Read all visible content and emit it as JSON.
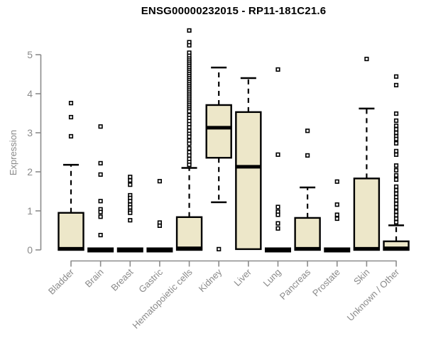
{
  "page": {
    "background": "#ffffff"
  },
  "chart_data": {
    "type": "boxplot",
    "title": "ENSG00000232015 - RP11-181C21.6",
    "ylabel": "Expression",
    "xlabel": "",
    "ylim": [
      0,
      5
    ],
    "yticks": [
      0,
      1,
      2,
      3,
      4,
      5
    ],
    "grid": false,
    "legend": "none",
    "colors": {
      "box_fill": "#EDE7C9",
      "box_stroke": "#000000",
      "median": "#000000",
      "axis": "#8c8c8c",
      "tick_text": "#8a8a8a",
      "title_text": "#000000",
      "outlier_fill": "#ffffff"
    },
    "categories": [
      "Bladder",
      "Brain",
      "Breast",
      "Gastric",
      "Hematopoietic cells",
      "Kidney",
      "Liver",
      "Lung",
      "Pancreas",
      "Prostate",
      "Skin",
      "Unknown / Other"
    ],
    "boxes": [
      {
        "label": "Bladder",
        "q1": 0,
        "median": 0.03,
        "q3": 0.95,
        "whisker_low": 0,
        "whisker_high": 2.18,
        "outliers": [
          3.76,
          3.4,
          2.91
        ]
      },
      {
        "label": "Brain",
        "q1": 0,
        "median": 0,
        "q3": 0,
        "whisker_low": 0,
        "whisker_high": 0,
        "outliers": [
          3.16,
          2.22,
          1.93,
          1.25,
          1.04,
          0.97,
          0.85,
          0.38
        ]
      },
      {
        "label": "Breast",
        "q1": 0,
        "median": 0,
        "q3": 0,
        "whisker_low": 0,
        "whisker_high": 0,
        "outliers": [
          1.87,
          1.78,
          1.67,
          1.4,
          1.33,
          1.25,
          1.16,
          1.09,
          1.0,
          0.95,
          0.76
        ]
      },
      {
        "label": "Gastric",
        "q1": 0,
        "median": 0,
        "q3": 0,
        "whisker_low": 0,
        "whisker_high": 0,
        "outliers": [
          1.76,
          0.7,
          0.62
        ]
      },
      {
        "label": "Hematopoietic cells",
        "q1": 0,
        "median": 0.04,
        "q3": 0.84,
        "whisker_low": 0,
        "whisker_high": 2.1,
        "outliers": [
          5.62,
          5.32,
          5.24,
          5.05,
          4.97,
          4.9,
          4.85,
          4.8,
          4.75,
          4.7,
          4.65,
          4.6,
          4.55,
          4.5,
          4.45,
          4.4,
          4.35,
          4.3,
          4.25,
          4.2,
          4.15,
          4.1,
          4.05,
          4.0,
          3.95,
          3.9,
          3.85,
          3.8,
          3.75,
          3.7,
          3.65,
          3.6,
          3.55,
          3.45,
          3.38,
          3.3,
          3.22,
          3.14,
          3.05,
          2.97,
          2.9,
          2.8,
          2.72,
          2.6,
          2.5,
          2.42,
          2.33,
          2.25,
          2.18
        ]
      },
      {
        "label": "Kidney",
        "q1": 2.36,
        "median": 3.13,
        "q3": 3.71,
        "whisker_low": 1.22,
        "whisker_high": 4.67,
        "outliers": [
          0.02
        ]
      },
      {
        "label": "Liver",
        "q1": 0.02,
        "median": 2.13,
        "q3": 3.53,
        "whisker_low": 0.02,
        "whisker_high": 4.4,
        "outliers": []
      },
      {
        "label": "Lung",
        "q1": 0,
        "median": 0,
        "q3": 0,
        "whisker_low": 0,
        "whisker_high": 0,
        "outliers": [
          4.62,
          2.44,
          1.1,
          0.98,
          0.9,
          0.68,
          0.55
        ]
      },
      {
        "label": "Pancreas",
        "q1": 0,
        "median": 0.03,
        "q3": 0.82,
        "whisker_low": 0,
        "whisker_high": 1.6,
        "outliers": [
          3.05,
          2.42
        ]
      },
      {
        "label": "Prostate",
        "q1": 0,
        "median": 0,
        "q3": 0,
        "whisker_low": 0,
        "whisker_high": 0,
        "outliers": [
          1.75,
          1.16,
          0.9,
          0.8
        ]
      },
      {
        "label": "Skin",
        "q1": 0,
        "median": 0.03,
        "q3": 1.83,
        "whisker_low": 0,
        "whisker_high": 3.62,
        "outliers": [
          4.89
        ]
      },
      {
        "label": "Unknown / Other",
        "q1": 0,
        "median": 0.04,
        "q3": 0.22,
        "whisker_low": 0,
        "whisker_high": 0.63,
        "outliers": [
          4.44,
          4.22,
          3.49,
          3.31,
          3.18,
          3.09,
          3.0,
          2.91,
          2.84,
          2.73,
          2.53,
          2.44,
          2.16,
          2.04,
          1.91,
          1.8,
          1.62,
          1.53,
          1.44,
          1.35,
          1.27,
          1.18,
          1.09,
          0.98,
          0.89,
          0.8,
          0.71
        ]
      }
    ]
  }
}
